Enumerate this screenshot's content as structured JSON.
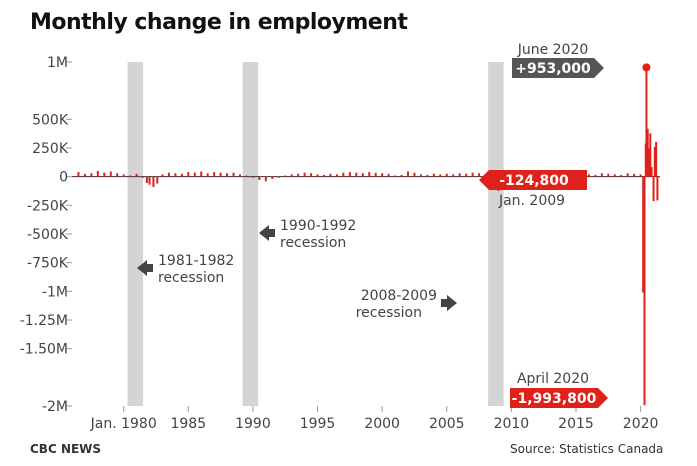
{
  "chart_data": {
    "type": "bar",
    "title": "Monthly change in employment",
    "xlabel": "",
    "ylabel": "",
    "x_range": [
      1976,
      2021.5
    ],
    "ylim": [
      -2000000,
      1000000
    ],
    "grid": false,
    "yticks": [
      {
        "value": 1000000,
        "label": "1M"
      },
      {
        "value": 500000,
        "label": "500K"
      },
      {
        "value": 250000,
        "label": "250K"
      },
      {
        "value": 0,
        "label": "0"
      },
      {
        "value": -250000,
        "label": "-250K"
      },
      {
        "value": -500000,
        "label": "-500K"
      },
      {
        "value": -750000,
        "label": "-750K"
      },
      {
        "value": -1000000,
        "label": "-1M"
      },
      {
        "value": -1250000,
        "label": "-1.25M"
      },
      {
        "value": -1500000,
        "label": "-1.50M"
      },
      {
        "value": -2000000,
        "label": "-2M"
      }
    ],
    "xticks": [
      {
        "value": 1980,
        "label": "Jan. 1980"
      },
      {
        "value": 1985,
        "label": "1985"
      },
      {
        "value": 1990,
        "label": "1990"
      },
      {
        "value": 1995,
        "label": "1995"
      },
      {
        "value": 2000,
        "label": "2000"
      },
      {
        "value": 2005,
        "label": "2005"
      },
      {
        "value": 2010,
        "label": "2010"
      },
      {
        "value": 2015,
        "label": "2015"
      },
      {
        "value": 2020,
        "label": "2020"
      }
    ],
    "recessions": [
      {
        "start": 1980.3,
        "end": 1981.5,
        "label_line1": "1981-1982",
        "label_line2": "recession",
        "arrow": "left"
      },
      {
        "start": 1989.2,
        "end": 1990.4,
        "label_line1": "1990-1992",
        "label_line2": "recession",
        "arrow": "left"
      },
      {
        "start": 2008.2,
        "end": 2009.4,
        "label_line1": "2008-2009",
        "label_line2": "recession",
        "arrow": "right"
      }
    ],
    "series": [
      {
        "values": [
          {
            "x": 1976.5,
            "y": 40000
          },
          {
            "x": 1977.0,
            "y": 25000
          },
          {
            "x": 1977.5,
            "y": 30000
          },
          {
            "x": 1978.0,
            "y": 50000
          },
          {
            "x": 1978.5,
            "y": 35000
          },
          {
            "x": 1979.0,
            "y": 45000
          },
          {
            "x": 1979.5,
            "y": 30000
          },
          {
            "x": 1980.0,
            "y": 20000
          },
          {
            "x": 1980.5,
            "y": 10000
          },
          {
            "x": 1981.0,
            "y": 25000
          },
          {
            "x": 1981.5,
            "y": -10000
          },
          {
            "x": 1981.8,
            "y": -55000
          },
          {
            "x": 1982.0,
            "y": -70000
          },
          {
            "x": 1982.3,
            "y": -90000
          },
          {
            "x": 1982.6,
            "y": -60000
          },
          {
            "x": 1983.0,
            "y": 20000
          },
          {
            "x": 1983.5,
            "y": 35000
          },
          {
            "x": 1984.0,
            "y": 30000
          },
          {
            "x": 1984.5,
            "y": 25000
          },
          {
            "x": 1985.0,
            "y": 40000
          },
          {
            "x": 1985.5,
            "y": 35000
          },
          {
            "x": 1986.0,
            "y": 45000
          },
          {
            "x": 1986.5,
            "y": 30000
          },
          {
            "x": 1987.0,
            "y": 40000
          },
          {
            "x": 1987.5,
            "y": 35000
          },
          {
            "x": 1988.0,
            "y": 30000
          },
          {
            "x": 1988.5,
            "y": 35000
          },
          {
            "x": 1989.0,
            "y": 20000
          },
          {
            "x": 1989.5,
            "y": 10000
          },
          {
            "x": 1990.0,
            "y": -10000
          },
          {
            "x": 1990.5,
            "y": -30000
          },
          {
            "x": 1991.0,
            "y": -40000
          },
          {
            "x": 1991.5,
            "y": -20000
          },
          {
            "x": 1992.0,
            "y": -10000
          },
          {
            "x": 1992.5,
            "y": 10000
          },
          {
            "x": 1993.0,
            "y": 20000
          },
          {
            "x": 1993.5,
            "y": 25000
          },
          {
            "x": 1994.0,
            "y": 35000
          },
          {
            "x": 1994.5,
            "y": 30000
          },
          {
            "x": 1995.0,
            "y": 20000
          },
          {
            "x": 1995.5,
            "y": 15000
          },
          {
            "x": 1996.0,
            "y": 25000
          },
          {
            "x": 1996.5,
            "y": 20000
          },
          {
            "x": 1997.0,
            "y": 35000
          },
          {
            "x": 1997.5,
            "y": 40000
          },
          {
            "x": 1998.0,
            "y": 35000
          },
          {
            "x": 1998.5,
            "y": 30000
          },
          {
            "x": 1999.0,
            "y": 40000
          },
          {
            "x": 1999.5,
            "y": 35000
          },
          {
            "x": 2000.0,
            "y": 30000
          },
          {
            "x": 2000.5,
            "y": 25000
          },
          {
            "x": 2001.0,
            "y": 10000
          },
          {
            "x": 2001.5,
            "y": 15000
          },
          {
            "x": 2002.0,
            "y": 45000
          },
          {
            "x": 2002.5,
            "y": 35000
          },
          {
            "x": 2003.0,
            "y": 20000
          },
          {
            "x": 2003.5,
            "y": 15000
          },
          {
            "x": 2004.0,
            "y": 25000
          },
          {
            "x": 2004.5,
            "y": 20000
          },
          {
            "x": 2005.0,
            "y": 25000
          },
          {
            "x": 2005.5,
            "y": 20000
          },
          {
            "x": 2006.0,
            "y": 30000
          },
          {
            "x": 2006.5,
            "y": 25000
          },
          {
            "x": 2007.0,
            "y": 35000
          },
          {
            "x": 2007.5,
            "y": 30000
          },
          {
            "x": 2008.0,
            "y": 20000
          },
          {
            "x": 2008.5,
            "y": -30000
          },
          {
            "x": 2009.0,
            "y": -124800
          },
          {
            "x": 2009.3,
            "y": -40000
          },
          {
            "x": 2009.6,
            "y": 20000
          },
          {
            "x": 2010.0,
            "y": 30000
          },
          {
            "x": 2010.5,
            "y": 25000
          },
          {
            "x": 2011.0,
            "y": 20000
          },
          {
            "x": 2011.5,
            "y": 25000
          },
          {
            "x": 2012.0,
            "y": 15000
          },
          {
            "x": 2012.5,
            "y": 20000
          },
          {
            "x": 2013.0,
            "y": 15000
          },
          {
            "x": 2013.5,
            "y": 20000
          },
          {
            "x": 2014.0,
            "y": 10000
          },
          {
            "x": 2014.5,
            "y": 15000
          },
          {
            "x": 2015.0,
            "y": 10000
          },
          {
            "x": 2015.5,
            "y": 15000
          },
          {
            "x": 2016.0,
            "y": 20000
          },
          {
            "x": 2016.5,
            "y": 15000
          },
          {
            "x": 2017.0,
            "y": 30000
          },
          {
            "x": 2017.5,
            "y": 25000
          },
          {
            "x": 2018.0,
            "y": 20000
          },
          {
            "x": 2018.5,
            "y": 15000
          },
          {
            "x": 2019.0,
            "y": 30000
          },
          {
            "x": 2019.5,
            "y": 25000
          },
          {
            "x": 2020.0,
            "y": 20000
          },
          {
            "x": 2020.2,
            "y": -1011000
          },
          {
            "x": 2020.3,
            "y": -1993800
          },
          {
            "x": 2020.4,
            "y": 289600
          },
          {
            "x": 2020.45,
            "y": 953000
          },
          {
            "x": 2020.55,
            "y": 418500
          },
          {
            "x": 2020.65,
            "y": 245800
          },
          {
            "x": 2020.75,
            "y": 378000
          },
          {
            "x": 2020.85,
            "y": 83600
          },
          {
            "x": 2021.0,
            "y": -212800
          },
          {
            "x": 2021.1,
            "y": 259200
          },
          {
            "x": 2021.2,
            "y": 303100
          },
          {
            "x": 2021.3,
            "y": -207100
          }
        ]
      }
    ],
    "annotations": [
      {
        "x": 2009.0,
        "y": -124800,
        "value_label": "-124,800",
        "date_label": "Jan. 2009",
        "color": "#e0201b"
      },
      {
        "x": 2020.45,
        "y": 953000,
        "value_label": "+953,000",
        "date_label": "June 2020",
        "color": "#555555"
      },
      {
        "x": 2020.3,
        "y": -1993800,
        "value_label": "-1,993,800",
        "date_label": "April 2020",
        "color": "#e0201b"
      }
    ]
  },
  "colors": {
    "bar": "#e0201b",
    "recession_band": "#d4d4d4",
    "axis": "#333333",
    "gray_badge": "#555555"
  },
  "footer": {
    "credit": "CBC NEWS",
    "source": "Source: Statistics Canada"
  }
}
